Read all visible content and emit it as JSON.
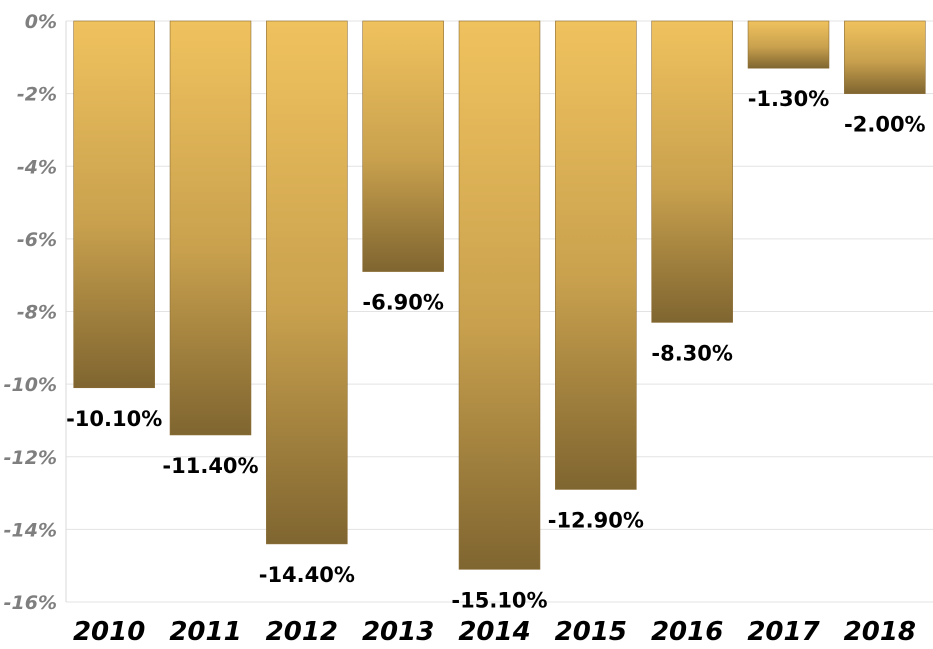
{
  "chart_data": {
    "type": "bar",
    "title": "",
    "xlabel": "",
    "ylabel": "",
    "categories": [
      "2010",
      "2011",
      "2012",
      "2013",
      "2014",
      "2015",
      "2016",
      "2017",
      "2018"
    ],
    "values": [
      -10.1,
      -11.4,
      -14.4,
      -6.9,
      -15.1,
      -12.9,
      -8.3,
      -1.3,
      -2.0
    ],
    "data_labels": [
      "-10.10%",
      "-11.40%",
      "-14.40%",
      "-6.90%",
      "-15.10%",
      "-12.90%",
      "-8.30%",
      "-1.30%",
      "-2.00%"
    ],
    "ylim": [
      -16,
      0
    ],
    "yticks": [
      0,
      -2,
      -4,
      -6,
      -8,
      -10,
      -12,
      -14,
      -16
    ],
    "ytick_labels": [
      "0%",
      "-2%",
      "-4%",
      "-6%",
      "-8%",
      "-10%",
      "-12%",
      "-14%",
      "-16%"
    ],
    "x_axis_position": "bottom",
    "grid": true,
    "legend": "none",
    "colors": {
      "bar_top": "#f0c25e",
      "bar_bottom": "#7f6530",
      "grid": "#e3e3e3",
      "ytick_text": "#7f7f7f",
      "xtick_text": "#000000",
      "data_label_text": "#000000"
    }
  }
}
